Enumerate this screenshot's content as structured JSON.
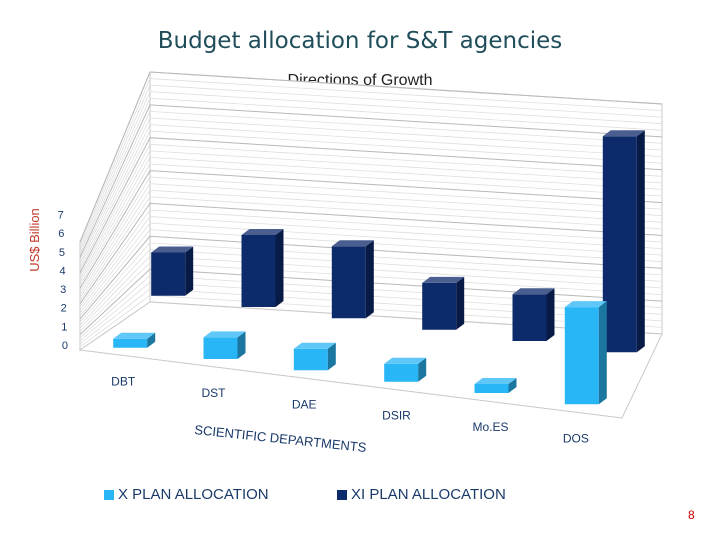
{
  "slide": {
    "title": "Budget allocation for S&T agencies",
    "subtitle": "Directions of Growth",
    "page_number": "8"
  },
  "colors": {
    "x_plan": "#29b6f6",
    "xi_plan": "#0d2a6b",
    "title": "#1f4e5a",
    "axis_text": "#1a3a6a",
    "page_number": "#cc0000"
  },
  "chart_data": {
    "type": "bar",
    "style": "3d-clustered-columns",
    "title": "",
    "xlabel": "SCIENTIFIC DEPARTMENTS",
    "ylabel": "US$ Billion",
    "ylim": [
      0,
      7
    ],
    "yticks": [
      "0",
      "1",
      "2",
      "3",
      "4",
      "5",
      "6",
      "7"
    ],
    "grid": true,
    "legend_position": "bottom",
    "categories": [
      "DBT",
      "DST",
      "DAE",
      "DSIR",
      "Mo.ES",
      "DOS"
    ],
    "series": [
      {
        "name": "X PLAN ALLOCATION",
        "color": "#29b6f6",
        "values": [
          0.25,
          0.6,
          0.6,
          0.5,
          0.25,
          2.7
        ]
      },
      {
        "name": "XI PLAN ALLOCATION",
        "color": "#0d2a6b",
        "values": [
          1.2,
          2.0,
          2.0,
          1.3,
          1.3,
          6.0
        ]
      }
    ]
  }
}
